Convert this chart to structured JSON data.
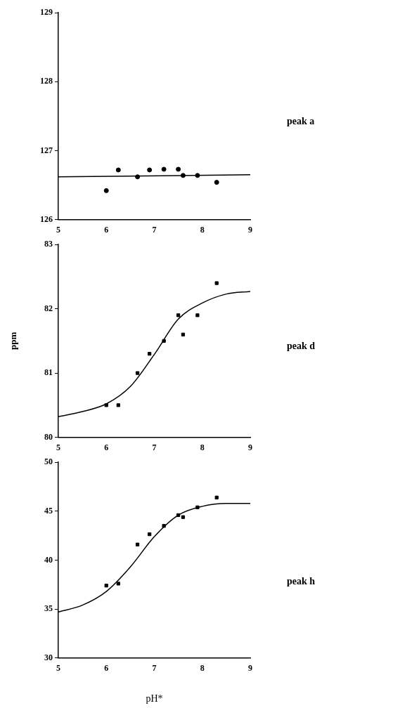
{
  "chart_data": [
    {
      "type": "scatter",
      "annotations": [
        "peak a"
      ],
      "x": [
        6.0,
        6.25,
        6.65,
        6.9,
        7.2,
        7.5,
        7.6,
        7.9,
        8.3
      ],
      "xlim": [
        5,
        9
      ],
      "xticks": [
        5,
        6,
        7,
        8,
        9
      ],
      "ylim": [
        126,
        129
      ],
      "yticks": [
        126,
        127,
        128,
        129
      ],
      "grid": false,
      "legend": false,
      "series": [
        {
          "type": "scatter",
          "color": "#000000",
          "marker": "circle",
          "values": [
            126.42,
            126.72,
            126.62,
            126.72,
            126.73,
            126.73,
            126.64,
            126.64,
            126.54
          ]
        },
        {
          "type": "line",
          "color": "#000000",
          "marker": "none",
          "x": [
            5,
            9
          ],
          "values": [
            126.62,
            126.65
          ]
        }
      ]
    },
    {
      "type": "scatter",
      "annotations": [
        "peak d"
      ],
      "ylabel": "ppm",
      "x": [
        6.0,
        6.25,
        6.65,
        6.9,
        7.2,
        7.5,
        7.6,
        7.9,
        8.3
      ],
      "xlim": [
        5,
        9
      ],
      "xticks": [
        5,
        6,
        7,
        8,
        9
      ],
      "ylim": [
        80,
        83
      ],
      "yticks": [
        80,
        81,
        82,
        83
      ],
      "grid": false,
      "legend": false,
      "series": [
        {
          "type": "scatter",
          "color": "#000000",
          "marker": "square",
          "values": [
            80.5,
            80.5,
            81.0,
            81.3,
            81.5,
            81.9,
            81.6,
            81.9,
            82.4
          ]
        },
        {
          "type": "line",
          "color": "#000000",
          "marker": "none",
          "x": [
            5,
            5.5,
            6,
            6.5,
            7,
            7.5,
            8,
            8.5,
            9
          ],
          "values": [
            80.32,
            80.4,
            80.52,
            80.79,
            81.29,
            81.84,
            82.09,
            82.23,
            82.27
          ]
        }
      ]
    },
    {
      "type": "scatter",
      "annotations": [
        "peak h"
      ],
      "xlabel": "pH*",
      "x": [
        6.0,
        6.25,
        6.65,
        6.9,
        7.2,
        7.5,
        7.6,
        7.9,
        8.3
      ],
      "xlim": [
        5,
        9
      ],
      "xticks": [
        5,
        6,
        7,
        8,
        9
      ],
      "ylim": [
        30,
        50
      ],
      "yticks": [
        30,
        35,
        40,
        45,
        50
      ],
      "grid": false,
      "legend": false,
      "series": [
        {
          "type": "scatter",
          "color": "#000000",
          "marker": "square",
          "values": [
            37.4,
            37.6,
            41.6,
            42.65,
            43.5,
            44.6,
            44.4,
            45.4,
            46.4
          ]
        },
        {
          "type": "line",
          "color": "#000000",
          "marker": "none",
          "x": [
            5,
            5.5,
            6,
            6.5,
            7,
            7.5,
            8,
            8.5,
            9
          ],
          "values": [
            34.7,
            35.4,
            36.8,
            39.3,
            42.4,
            44.6,
            45.5,
            45.8,
            45.8
          ]
        }
      ]
    }
  ]
}
